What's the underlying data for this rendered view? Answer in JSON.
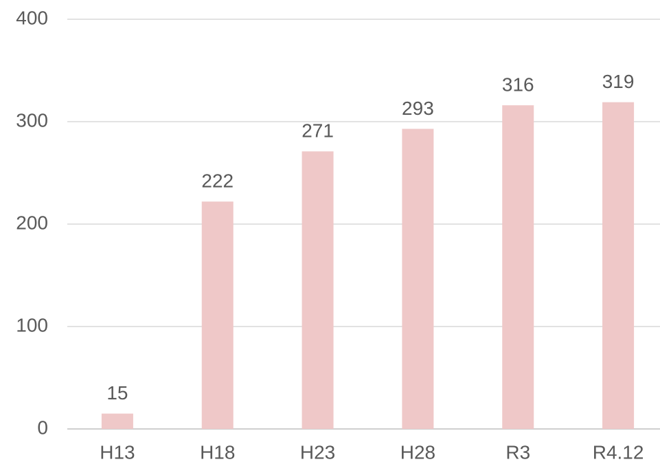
{
  "chart_data": {
    "type": "bar",
    "categories": [
      "H13",
      "H18",
      "H23",
      "H28",
      "R3",
      "R4.12"
    ],
    "values": [
      15,
      222,
      271,
      293,
      316,
      319
    ],
    "color": "#efc8c8",
    "ylim": [
      0,
      400
    ],
    "yticks": [
      0,
      100,
      200,
      300,
      400
    ],
    "grid": true
  }
}
